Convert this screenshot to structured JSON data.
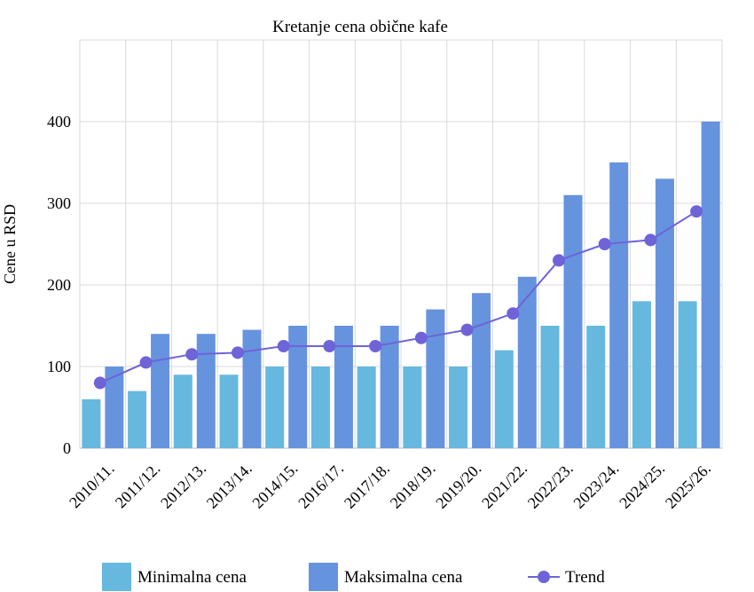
{
  "chart_data": {
    "type": "bar",
    "title": "Kretanje cena obične kafe",
    "xlabel": "",
    "ylabel": "Cene u RSD",
    "ylim": [
      0,
      500
    ],
    "yticks": [
      0,
      100,
      200,
      300,
      400
    ],
    "grid": true,
    "legend_position": "bottom",
    "categories": [
      "2010/11.",
      "2011/12.",
      "2012/13.",
      "2013/14.",
      "2014/15.",
      "2016/17.",
      "2017/18.",
      "2018/19.",
      "2019/20.",
      "2021/22.",
      "2022/23.",
      "2023/24.",
      "2024/25.",
      "2025/26."
    ],
    "series": [
      {
        "name": "Minimalna cena",
        "type": "bar",
        "color": "#66b8de",
        "values": [
          60,
          70,
          90,
          90,
          100,
          100,
          100,
          100,
          100,
          120,
          150,
          150,
          180,
          180
        ]
      },
      {
        "name": "Maksimalna cena",
        "type": "bar",
        "color": "#6693de",
        "values": [
          100,
          140,
          140,
          145,
          150,
          150,
          150,
          170,
          190,
          210,
          310,
          350,
          330,
          400
        ]
      },
      {
        "name": "Trend",
        "type": "line",
        "color": "#6f63d8",
        "values": [
          80,
          105,
          115,
          117,
          125,
          125,
          125,
          135,
          145,
          165,
          230,
          250,
          255,
          290
        ]
      }
    ]
  }
}
